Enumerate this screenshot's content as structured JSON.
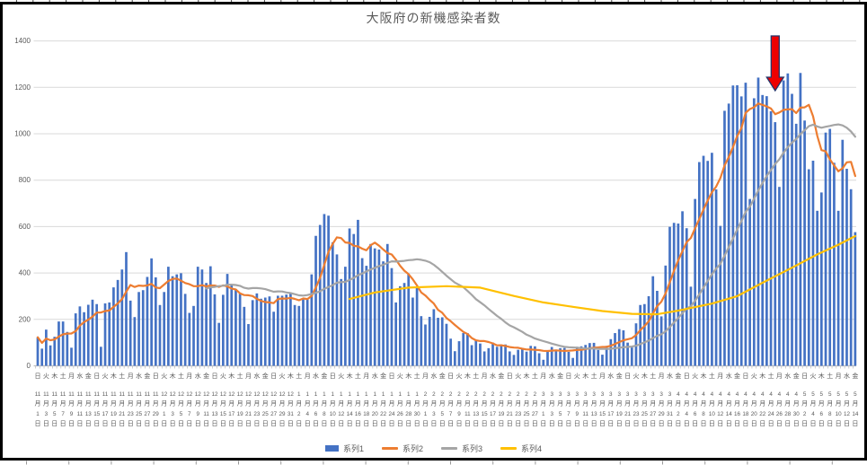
{
  "chart_data": {
    "type": "bar",
    "title": "大阪府の新機感染者数",
    "xlabel": "",
    "ylabel": "",
    "ylim": [
      0,
      1400
    ],
    "y_ticks": [
      0,
      200,
      400,
      600,
      800,
      1000,
      1200,
      1400
    ],
    "grid": "horizontal",
    "legend_position": "bottom",
    "x_unit": "day",
    "x_start_label": "11月1日",
    "x_end_label": "5月14日",
    "x_label_every_n_days": 2,
    "weekday_cycle": [
      "日",
      "火",
      "木",
      "土",
      "月",
      "水",
      "金"
    ],
    "month_suffix": "月",
    "day_suffix": "日",
    "x_label_months": [
      {
        "m": "11",
        "days": [
          "1",
          "3",
          "5",
          "7",
          "9",
          "11",
          "13",
          "15",
          "17",
          "19",
          "21",
          "23",
          "25",
          "27",
          "29"
        ]
      },
      {
        "m": "12",
        "days": [
          "1",
          "3",
          "5",
          "7",
          "9",
          "11",
          "13",
          "15",
          "17",
          "19",
          "21",
          "23",
          "25",
          "27",
          "29",
          "31"
        ]
      },
      {
        "m": "1",
        "days": [
          "2",
          "4",
          "6",
          "8",
          "10",
          "12",
          "14",
          "16",
          "18",
          "20",
          "22",
          "24",
          "26",
          "28",
          "30"
        ]
      },
      {
        "m": "2",
        "days": [
          "1",
          "3",
          "5",
          "7",
          "9",
          "11",
          "13",
          "15",
          "17",
          "19",
          "21",
          "23",
          "25",
          "27"
        ]
      },
      {
        "m": "3",
        "days": [
          "1",
          "3",
          "5",
          "7",
          "9",
          "11",
          "13",
          "15",
          "17",
          "19",
          "21",
          "23",
          "25",
          "27",
          "29",
          "31"
        ]
      },
      {
        "m": "4",
        "days": [
          "2",
          "4",
          "6",
          "8",
          "10",
          "12",
          "14",
          "16",
          "18",
          "20",
          "22",
          "24",
          "26",
          "28",
          "30"
        ]
      },
      {
        "m": "5",
        "days": [
          "2",
          "4",
          "6",
          "8",
          "10",
          "12",
          "14"
        ]
      }
    ],
    "series": [
      {
        "name": "系列1",
        "chart_type": "bar",
        "color": "#4472C4",
        "values": [
          123,
          74,
          156,
          88,
          125,
          191,
          191,
          146,
          78,
          226,
          256,
          231,
          263,
          285,
          266,
          82,
          269,
          273,
          338,
          370,
          415,
          490,
          281,
          210,
          318,
          326,
          383,
          463,
          381,
          262,
          318,
          427,
          386,
          394,
          399,
          310,
          228,
          258,
          427,
          415,
          357,
          429,
          308,
          185,
          306,
          396,
          351,
          330,
          311,
          254,
          180,
          283,
          312,
          289,
          294,
          299,
          233,
          302,
          302,
          307,
          313,
          262,
          258,
          286,
          286,
          394,
          560,
          607,
          654,
          647,
          532,
          480,
          374,
          427,
          592,
          568,
          629,
          464,
          431,
          525,
          506,
          501,
          450,
          525,
          421,
          273,
          343,
          357,
          397,
          294,
          338,
          214,
          178,
          211,
          244,
          207,
          209,
          181,
          117,
          63,
          106,
          141,
          141,
          89,
          112,
          96,
          62,
          76,
          100,
          82,
          91,
          92,
          62,
          47,
          69,
          72,
          61,
          86,
          84,
          54,
          26,
          65,
          81,
          70,
          76,
          77,
          60,
          34,
          82,
          84,
          90,
          98,
          99,
          68,
          48,
          86,
          115,
          141,
          158,
          153,
          100,
          79,
          183,
          262,
          266,
          300,
          386,
          323,
          213,
          432,
          599,
          616,
          613,
          666,
          593,
          341,
          719,
          878,
          905,
          883,
          918,
          760,
          603,
          1099,
          1130,
          1208,
          1209,
          1161,
          1220,
          719,
          1153,
          1242,
          1167,
          1162,
          1097,
          1050,
          771,
          1230,
          1260,
          1172,
          1043,
          1262,
          1057,
          847,
          884,
          668,
          747,
          1005,
          1021,
          875,
          668,
          974,
          849,
          761,
          576
        ]
      },
      {
        "name": "系列2",
        "chart_type": "line",
        "color": "#ED7D31",
        "derived": "moving_average",
        "window": 7,
        "min_periods": 1,
        "plot_from_index": 0
      },
      {
        "name": "系列3",
        "chart_type": "line",
        "color": "#A5A5A5",
        "derived": "moving_average",
        "window": 28,
        "min_periods": 28,
        "plot_from_index": 40
      },
      {
        "name": "系列4",
        "chart_type": "line",
        "color": "#FFC000",
        "derived": "control_points",
        "points": [
          [
            74,
            288
          ],
          [
            80,
            316
          ],
          [
            88,
            337
          ],
          [
            97,
            343
          ],
          [
            105,
            337
          ],
          [
            113,
            301
          ],
          [
            120,
            273
          ],
          [
            127,
            254
          ],
          [
            134,
            236
          ],
          [
            141,
            224
          ],
          [
            147,
            222
          ],
          [
            152,
            238
          ],
          [
            160,
            268
          ],
          [
            166,
            300
          ],
          [
            172,
            358
          ],
          [
            179,
            423
          ],
          [
            185,
            480
          ],
          [
            190,
            522
          ],
          [
            194,
            559
          ]
        ]
      }
    ],
    "annotation": {
      "shape": "down-arrow",
      "fill": "#EE0000",
      "outline": "#24356B",
      "points_at_day_index": 175
    }
  },
  "colors": {
    "bar_blue": "#4472C4",
    "line_orange": "#ED7D31",
    "line_gray": "#A5A5A5",
    "line_yellow": "#FFC000",
    "gridline": "#D9D9D9",
    "axis_line": "#BFBFBF",
    "text": "#595959",
    "frame_border": "#000000",
    "arrow_red": "#EE0000"
  }
}
